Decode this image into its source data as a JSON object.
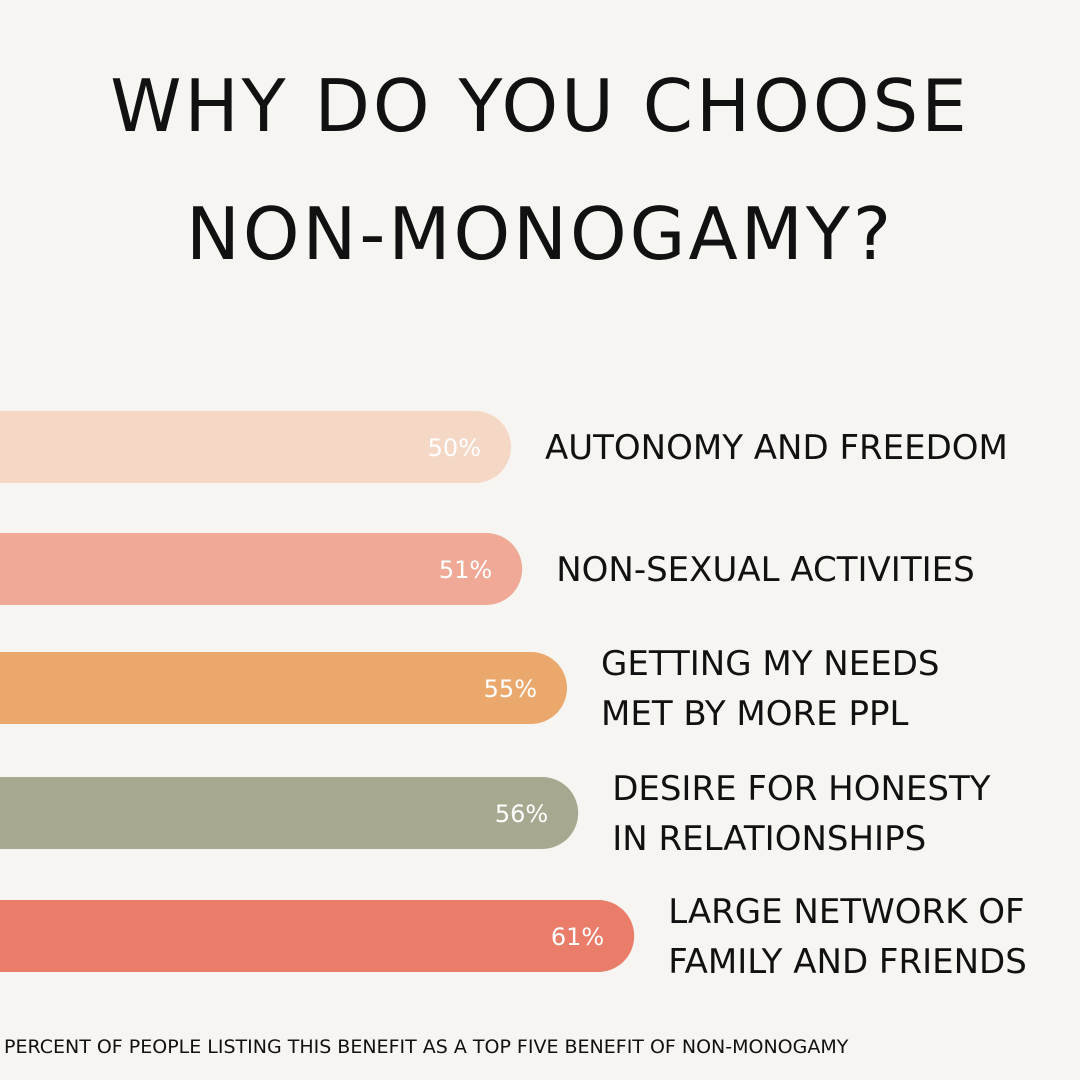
{
  "title_lines": [
    "WHY DO YOU CHOOSE",
    "NON-MONOGAMY?"
  ],
  "footnote": "PERCENT OF PEOPLE LISTING THIS BENEFIT AS A TOP  FIVE BENEFIT OF NON-MONOGAMY",
  "chart_data": {
    "type": "bar",
    "orientation": "horizontal",
    "unit": "%",
    "categories": [
      [
        "AUTONOMY AND FREEDOM"
      ],
      [
        "NON-SEXUAL ACTIVITIES"
      ],
      [
        "GETTING MY NEEDS",
        "MET BY MORE PPL"
      ],
      [
        "DESIRE FOR HONESTY",
        "IN RELATIONSHIPS"
      ],
      [
        "LARGE NETWORK OF",
        "FAMILY AND FRIENDS"
      ]
    ],
    "values": [
      50,
      51,
      55,
      56,
      61
    ],
    "value_labels": [
      "50%",
      "51%",
      "55%",
      "56%",
      "61%"
    ],
    "colors": [
      "#f4d7c5",
      "#f0a996",
      "#eaa86c",
      "#a7a890",
      "#e97d6a"
    ],
    "label_color": "#ffffff",
    "text_color": "#111111",
    "grid": false,
    "legend": "none"
  }
}
